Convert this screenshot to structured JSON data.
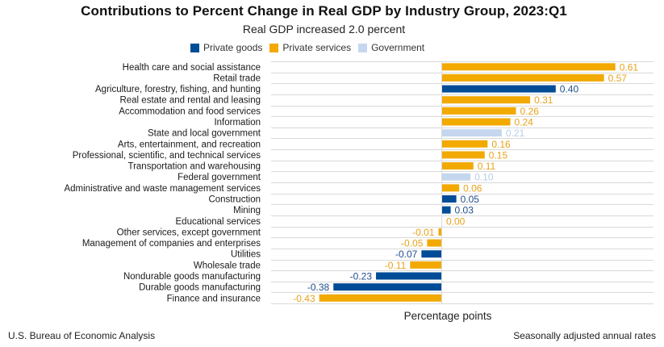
{
  "chart_data": {
    "type": "bar",
    "orientation": "horizontal",
    "title": "Contributions to Percent Change in Real GDP by Industry Group, 2023:Q1",
    "subtitle": "Real GDP increased 2.0 percent",
    "xlabel": "Percentage points",
    "ylabel": "",
    "grid": "horizontal",
    "legend_position": "top",
    "xlim": [
      -0.6,
      0.75
    ],
    "legend": [
      {
        "key": "goods",
        "label": "Private goods",
        "color": "#004C97",
        "label_color": "#1F4E8C"
      },
      {
        "key": "services",
        "label": "Private services",
        "color": "#F2A900",
        "label_color": "#E8A21C"
      },
      {
        "key": "government",
        "label": "Government",
        "color": "#C5D7EE",
        "label_color": "#B7CCE6"
      }
    ],
    "categories": [
      "Health care and social assistance",
      "Retail trade",
      "Agriculture, forestry, fishing, and hunting",
      "Real estate and rental and leasing",
      "Accommodation and food services",
      "Information",
      "State and local government",
      "Arts, entertainment, and recreation",
      "Professional, scientific, and technical services",
      "Transportation and warehousing",
      "Federal government",
      "Administrative and waste management services",
      "Construction",
      "Mining",
      "Educational services",
      "Other services, except government",
      "Management of companies and enterprises",
      "Utilities",
      "Wholesale trade",
      "Nondurable goods manufacturing",
      "Durable goods manufacturing",
      "Finance and insurance"
    ],
    "values": [
      0.61,
      0.57,
      0.4,
      0.31,
      0.26,
      0.24,
      0.21,
      0.16,
      0.15,
      0.11,
      0.1,
      0.06,
      0.05,
      0.03,
      0.0,
      -0.01,
      -0.05,
      -0.07,
      -0.11,
      -0.23,
      -0.38,
      -0.43
    ],
    "value_labels": [
      "0.61",
      "0.57",
      "0.40",
      "0.31",
      "0.26",
      "0.24",
      "0.21",
      "0.16",
      "0.15",
      "0.11",
      "0.10",
      "0.06",
      "0.05",
      "0.03",
      "0.00",
      "-0.01",
      "-0.05",
      "-0.07",
      "-0.11",
      "-0.23",
      "-0.38",
      "-0.43"
    ],
    "groups": [
      "services",
      "services",
      "goods",
      "services",
      "services",
      "services",
      "government",
      "services",
      "services",
      "services",
      "government",
      "services",
      "goods",
      "goods",
      "services",
      "services",
      "services",
      "goods",
      "services",
      "goods",
      "goods",
      "services"
    ]
  },
  "footer": {
    "source": "U.S. Bureau of Economic Analysis",
    "note": "Seasonally adjusted annual rates"
  }
}
